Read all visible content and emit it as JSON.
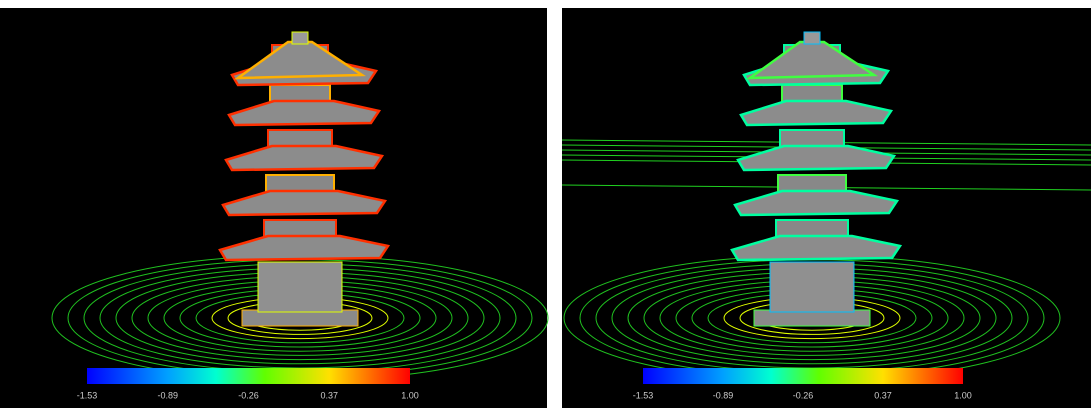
{
  "panels": [
    {
      "colorbar": {
        "labels": [
          "-1.53",
          "-0.89",
          "-0.26",
          "0.37",
          "1.00"
        ]
      }
    },
    {
      "colorbar": {
        "labels": [
          "-1.53",
          "-0.89",
          "-0.26",
          "0.37",
          "1.00"
        ]
      }
    }
  ]
}
